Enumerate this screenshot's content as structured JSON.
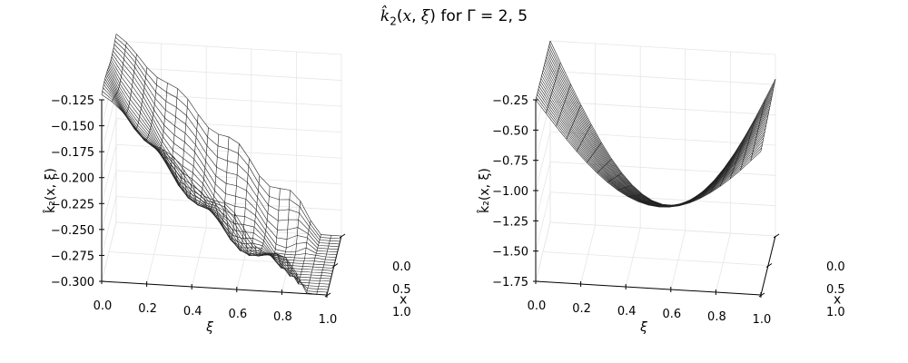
{
  "title": "k̂₂(x, ξ) for Γ = 2, 5",
  "chart_data": [
    {
      "type": "surface",
      "gamma": 2,
      "xlabel": "ξ",
      "ylabel": "x",
      "zlabel": "k̂₂(x, ξ)",
      "xlim": [
        0,
        1
      ],
      "ylim": [
        0,
        1
      ],
      "zlim": [
        -0.3,
        -0.125
      ],
      "xticks": [
        "0.0",
        "0.2",
        "0.4",
        "0.6",
        "0.8",
        "1.0"
      ],
      "yticks": [
        "0.0",
        "0.5",
        "1.0"
      ],
      "zticks": [
        "−0.125",
        "−0.150",
        "−0.175",
        "−0.200",
        "−0.225",
        "−0.250",
        "−0.275",
        "−0.300"
      ],
      "grid": true,
      "style": "wireframe",
      "line_color": "#000000"
    },
    {
      "type": "surface",
      "gamma": 5,
      "xlabel": "ξ",
      "ylabel": "x",
      "zlabel": "k̂₂(x, ξ)",
      "xlim": [
        0,
        1
      ],
      "ylim": [
        0,
        1
      ],
      "zlim": [
        -1.75,
        -0.25
      ],
      "xticks": [
        "0.0",
        "0.2",
        "0.4",
        "0.6",
        "0.8",
        "1.0"
      ],
      "yticks": [
        "0.0",
        "0.5",
        "1.0"
      ],
      "zticks": [
        "−0.25",
        "−0.50",
        "−0.75",
        "−1.00",
        "−1.25",
        "−1.50",
        "−1.75"
      ],
      "grid": true,
      "style": "wireframe",
      "line_color": "#000000"
    }
  ]
}
